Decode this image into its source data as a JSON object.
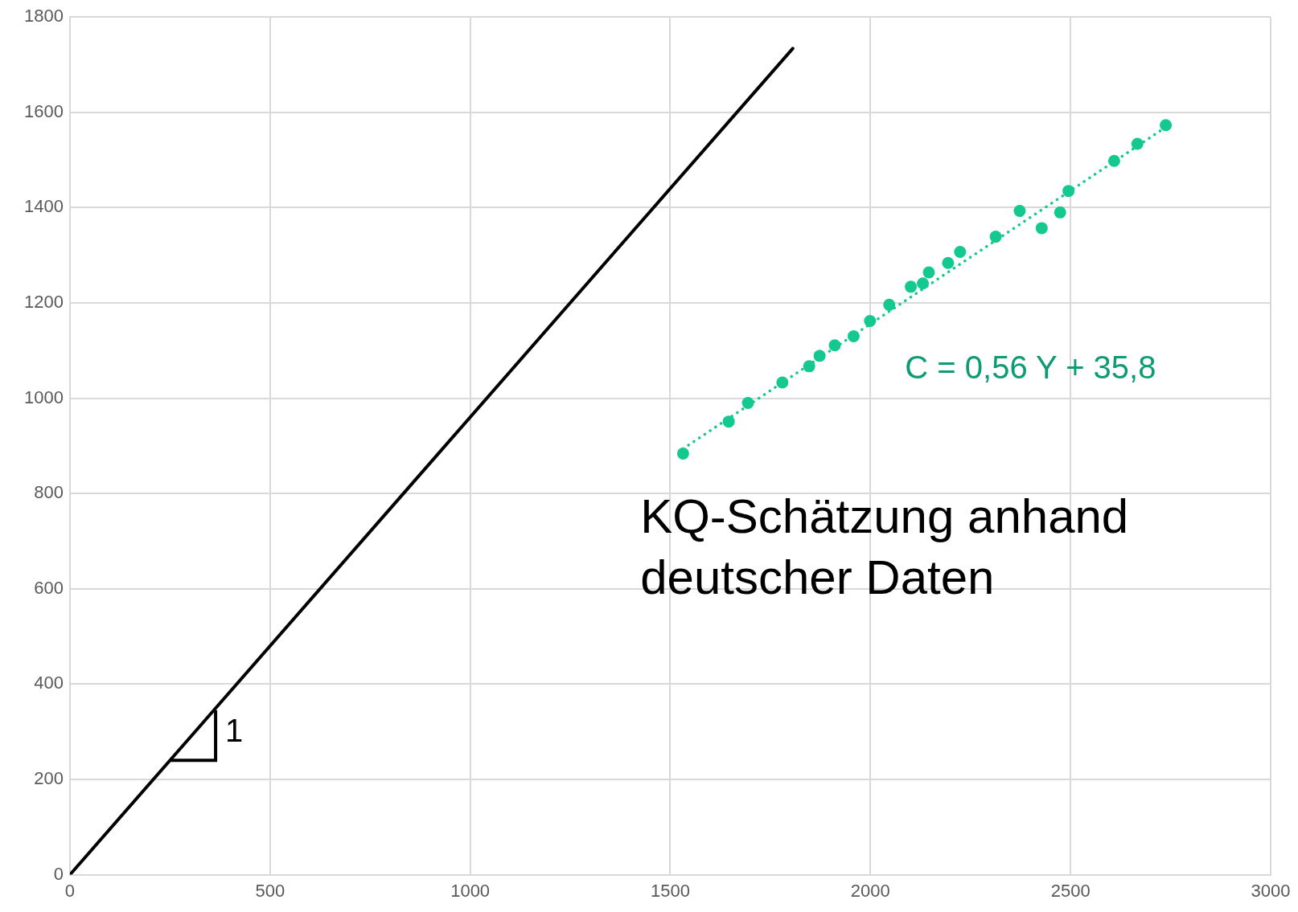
{
  "chart_data": {
    "type": "scatter",
    "xlim": [
      0,
      3000
    ],
    "ylim": [
      0,
      1800
    ],
    "xticks": [
      0,
      500,
      1000,
      1500,
      2000,
      2500,
      3000
    ],
    "yticks": [
      0,
      200,
      400,
      600,
      800,
      1000,
      1200,
      1400,
      1600,
      1800
    ],
    "grid": true,
    "legend": false,
    "marker": "circle",
    "series": [
      {
        "type": "line",
        "color": "#000000",
        "marker": "none",
        "line_style": "solid",
        "x": [
          0,
          1806
        ],
        "values": [
          0,
          1734
        ]
      },
      {
        "type": "scatter",
        "color": "#13c98f",
        "x": [
          1532,
          1646,
          1694,
          1780,
          1847,
          1873,
          1911,
          1958,
          1999,
          2047,
          2101,
          2131,
          2146,
          2194,
          2224,
          2313,
          2373,
          2428,
          2474,
          2495,
          2609,
          2667,
          2738
        ],
        "values": [
          884,
          951,
          990,
          1033,
          1067,
          1089,
          1111,
          1130,
          1162,
          1196,
          1234,
          1241,
          1264,
          1284,
          1307,
          1339,
          1393,
          1357,
          1390,
          1435,
          1498,
          1534,
          1573
        ]
      },
      {
        "type": "line",
        "color": "#13c98f",
        "marker": "none",
        "line_style": "dotted",
        "x": [
          1532,
          2738
        ],
        "values": [
          894,
          1569
        ]
      }
    ],
    "annotations": [
      {
        "text": "1",
        "x": 364,
        "y": 349
      },
      "KQ-Schätzung anhand deutscher Daten",
      "C = 0,56 Y + 35,8"
    ]
  }
}
